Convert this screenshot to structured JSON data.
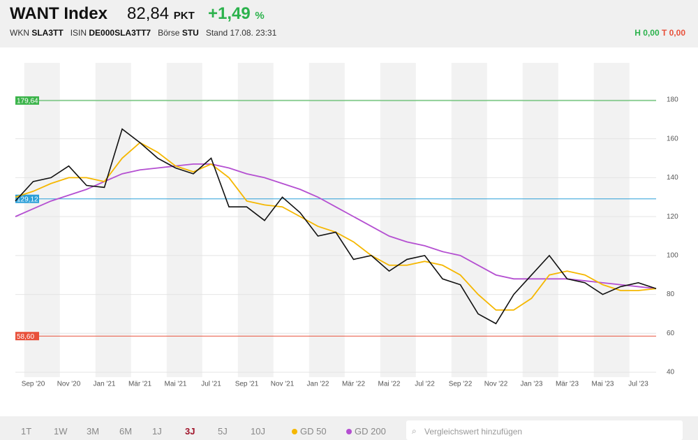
{
  "header": {
    "title": "WANT Index",
    "price": "82,84",
    "price_unit": "PKT",
    "change": "+1,49",
    "change_unit": "%",
    "wkn_label": "WKN",
    "wkn": "SLA3TT",
    "isin_label": "ISIN",
    "isin": "DE000SLA3TT7",
    "exchange_label": "Börse",
    "exchange": "STU",
    "stand": "Stand 17.08. 23:31",
    "high": "H 0,00",
    "low": "T 0,00"
  },
  "toolbar": {
    "ranges": [
      "1T",
      "1W",
      "3M",
      "6M",
      "1J",
      "3J",
      "5J",
      "10J"
    ],
    "active": "3J",
    "search_placeholder": "Vergleichswert hinzufügen"
  },
  "chart_data": {
    "type": "line",
    "categories": [
      null,
      "Sep '20",
      null,
      "Nov '20",
      null,
      "Jan '21",
      null,
      "Mär '21",
      null,
      "Mai '21",
      null,
      "Jul '21",
      null,
      "Sep '21",
      null,
      "Nov '21",
      null,
      "Jan '22",
      null,
      "Mär '22",
      null,
      "Mai '22",
      null,
      "Jul '22",
      null,
      "Sep '22",
      null,
      "Nov '22",
      null,
      "Jan '23",
      null,
      "Mär '23",
      null,
      "Mai '23",
      null,
      "Jul '23",
      null
    ],
    "series": [
      {
        "color": "#111111",
        "values": [
          128,
          138,
          140,
          146,
          136,
          135,
          165,
          158,
          150,
          145,
          142,
          150,
          125,
          125,
          118,
          130,
          122,
          110,
          112,
          98,
          100,
          92,
          98,
          100,
          88,
          85,
          70,
          65,
          80,
          90,
          100,
          88,
          86,
          80,
          84,
          86,
          83
        ]
      },
      {
        "name": "GD 50",
        "color": "#f5b700",
        "values": [
          130,
          133,
          137,
          140,
          140,
          138,
          150,
          158,
          153,
          146,
          143,
          147,
          140,
          128,
          126,
          125,
          120,
          115,
          112,
          107,
          100,
          95,
          95,
          97,
          95,
          90,
          80,
          72,
          72,
          78,
          90,
          92,
          90,
          85,
          82,
          82,
          83
        ]
      },
      {
        "name": "GD 200",
        "color": "#b44fd1",
        "values": [
          120,
          124,
          128,
          131,
          134,
          138,
          142,
          144,
          145,
          146,
          147,
          147,
          145,
          142,
          140,
          137,
          134,
          130,
          125,
          120,
          115,
          110,
          107,
          105,
          102,
          100,
          95,
          90,
          88,
          88,
          88,
          88,
          87,
          86,
          85,
          84,
          83
        ]
      }
    ],
    "ylim": [
      37.5,
      199
    ],
    "yticks": [
      40,
      60,
      80,
      100,
      120,
      140,
      160,
      180
    ],
    "reference_lines": [
      {
        "value": 179.64,
        "label": "179,64",
        "color": "#3cb44b"
      },
      {
        "value": 129.12,
        "label": "129,12",
        "color": "#2a9fd8"
      },
      {
        "value": 58.6,
        "label": "58,60",
        "color": "#e8503a"
      }
    ]
  }
}
